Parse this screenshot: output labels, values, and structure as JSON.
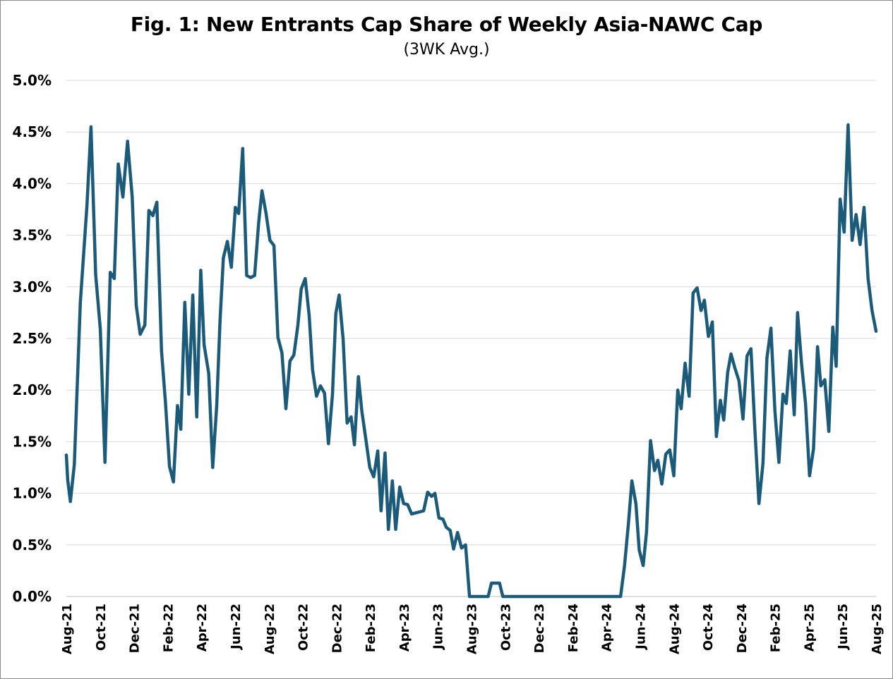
{
  "chart_data": {
    "type": "line",
    "title": "Fig. 1: New Entrants Cap Share of Weekly Asia-NAWC Cap",
    "subtitle": "(3WK Avg.)",
    "xlabel": "",
    "ylabel": "",
    "ylim": [
      0,
      5
    ],
    "y_ticks": [
      0,
      0.5,
      1,
      1.5,
      2,
      2.5,
      3,
      3.5,
      4,
      4.5,
      5
    ],
    "y_tick_labels": [
      "0.0%",
      "0.5%",
      "1.0%",
      "1.5%",
      "2.0%",
      "2.5%",
      "3.0%",
      "3.5%",
      "4.0%",
      "4.5%",
      "5.0%"
    ],
    "x_tick_labels": [
      "Aug-21",
      "Oct-21",
      "Dec-21",
      "Feb-22",
      "Apr-22",
      "Jun-22",
      "Aug-22",
      "Oct-22",
      "Dec-22",
      "Feb-23",
      "Apr-23",
      "Jun-23",
      "Aug-23",
      "Oct-23",
      "Dec-23",
      "Feb-24",
      "Apr-24",
      "Jun-24",
      "Aug-24",
      "Oct-24",
      "Dec-24",
      "Feb-25",
      "Apr-25",
      "Jun-25",
      "Aug-25"
    ],
    "grid": true,
    "line_color": "#1c5a7a",
    "series": [
      {
        "name": "New Entrants Cap Share (3WK Avg.)",
        "points": [
          [
            0.0,
            1.37
          ],
          [
            0.2,
            1.13
          ],
          [
            0.6,
            0.92
          ],
          [
            1.2,
            1.28
          ],
          [
            2.1,
            2.85
          ],
          [
            3.1,
            3.79
          ],
          [
            3.7,
            4.55
          ],
          [
            4.4,
            3.12
          ],
          [
            5.1,
            2.59
          ],
          [
            5.8,
            1.3
          ],
          [
            6.6,
            3.14
          ],
          [
            7.2,
            3.08
          ],
          [
            7.8,
            4.19
          ],
          [
            8.5,
            3.87
          ],
          [
            9.2,
            4.41
          ],
          [
            9.9,
            3.87
          ],
          [
            10.5,
            2.82
          ],
          [
            11.1,
            2.54
          ],
          [
            11.8,
            2.63
          ],
          [
            12.4,
            3.74
          ],
          [
            13.0,
            3.69
          ],
          [
            13.6,
            3.82
          ],
          [
            14.3,
            2.38
          ],
          [
            14.9,
            1.88
          ],
          [
            15.5,
            1.26
          ],
          [
            16.1,
            1.11
          ],
          [
            16.7,
            1.85
          ],
          [
            17.2,
            1.62
          ],
          [
            17.8,
            2.85
          ],
          [
            18.4,
            1.96
          ],
          [
            19.0,
            2.92
          ],
          [
            19.6,
            1.74
          ],
          [
            20.2,
            3.16
          ],
          [
            20.7,
            2.44
          ],
          [
            21.4,
            2.16
          ],
          [
            22.0,
            1.25
          ],
          [
            22.6,
            1.85
          ],
          [
            23.1,
            2.67
          ],
          [
            23.6,
            3.28
          ],
          [
            24.2,
            3.44
          ],
          [
            24.8,
            3.19
          ],
          [
            25.4,
            3.77
          ],
          [
            25.9,
            3.71
          ],
          [
            26.5,
            4.34
          ],
          [
            27.1,
            3.11
          ],
          [
            27.7,
            3.09
          ],
          [
            28.3,
            3.11
          ],
          [
            28.9,
            3.62
          ],
          [
            29.4,
            3.93
          ],
          [
            30.0,
            3.72
          ],
          [
            30.6,
            3.45
          ],
          [
            31.2,
            3.4
          ],
          [
            31.8,
            2.51
          ],
          [
            32.4,
            2.36
          ],
          [
            33.0,
            1.82
          ],
          [
            33.6,
            2.28
          ],
          [
            34.2,
            2.34
          ],
          [
            34.8,
            2.63
          ],
          [
            35.3,
            2.98
          ],
          [
            35.9,
            3.08
          ],
          [
            36.5,
            2.72
          ],
          [
            37.0,
            2.2
          ],
          [
            37.6,
            1.94
          ],
          [
            38.2,
            2.04
          ],
          [
            38.8,
            1.97
          ],
          [
            39.4,
            1.48
          ],
          [
            40.0,
            1.96
          ],
          [
            40.5,
            2.74
          ],
          [
            41.0,
            2.92
          ],
          [
            41.6,
            2.49
          ],
          [
            42.2,
            1.68
          ],
          [
            42.8,
            1.74
          ],
          [
            43.3,
            1.47
          ],
          [
            43.9,
            2.13
          ],
          [
            44.4,
            1.8
          ],
          [
            45.0,
            1.53
          ],
          [
            45.6,
            1.25
          ],
          [
            46.2,
            1.16
          ],
          [
            46.8,
            1.41
          ],
          [
            47.3,
            0.83
          ],
          [
            47.9,
            1.39
          ],
          [
            48.4,
            0.65
          ],
          [
            49.0,
            1.12
          ],
          [
            49.5,
            0.65
          ],
          [
            50.1,
            1.06
          ],
          [
            50.7,
            0.9
          ],
          [
            51.3,
            0.89
          ],
          [
            51.9,
            0.8
          ],
          [
            52.5,
            0.81
          ],
          [
            53.1,
            0.82
          ],
          [
            53.7,
            0.83
          ],
          [
            54.3,
            1.01
          ],
          [
            54.9,
            0.97
          ],
          [
            55.4,
            1.0
          ],
          [
            56.0,
            0.76
          ],
          [
            56.6,
            0.75
          ],
          [
            57.1,
            0.67
          ],
          [
            57.7,
            0.64
          ],
          [
            58.2,
            0.46
          ],
          [
            58.8,
            0.62
          ],
          [
            59.4,
            0.47
          ],
          [
            60.0,
            0.5
          ],
          [
            60.6,
            0.0
          ],
          [
            61.7,
            0.0
          ],
          [
            62.8,
            0.0
          ],
          [
            63.4,
            0.0
          ],
          [
            63.9,
            0.13
          ],
          [
            64.5,
            0.13
          ],
          [
            65.1,
            0.13
          ],
          [
            65.6,
            0.0
          ],
          [
            70.0,
            0.0
          ],
          [
            75.0,
            0.0
          ],
          [
            80.0,
            0.0
          ],
          [
            83.3,
            0.0
          ],
          [
            83.9,
            0.3
          ],
          [
            84.5,
            0.72
          ],
          [
            85.0,
            1.12
          ],
          [
            85.6,
            0.9
          ],
          [
            86.1,
            0.45
          ],
          [
            86.7,
            0.3
          ],
          [
            87.2,
            0.62
          ],
          [
            87.8,
            1.51
          ],
          [
            88.4,
            1.22
          ],
          [
            88.9,
            1.32
          ],
          [
            89.5,
            1.09
          ],
          [
            90.1,
            1.38
          ],
          [
            90.7,
            1.42
          ],
          [
            91.3,
            1.17
          ],
          [
            91.9,
            2.0
          ],
          [
            92.4,
            1.82
          ],
          [
            93.0,
            2.26
          ],
          [
            93.6,
            1.94
          ],
          [
            94.2,
            2.94
          ],
          [
            94.8,
            2.99
          ],
          [
            95.4,
            2.77
          ],
          [
            95.9,
            2.87
          ],
          [
            96.5,
            2.52
          ],
          [
            97.1,
            2.66
          ],
          [
            97.7,
            1.55
          ],
          [
            98.3,
            1.9
          ],
          [
            98.8,
            1.71
          ],
          [
            99.4,
            2.17
          ],
          [
            99.9,
            2.35
          ],
          [
            100.5,
            2.21
          ],
          [
            101.1,
            2.09
          ],
          [
            101.7,
            1.72
          ],
          [
            102.3,
            2.33
          ],
          [
            102.9,
            2.4
          ],
          [
            103.5,
            1.6
          ],
          [
            104.1,
            0.9
          ],
          [
            104.7,
            1.29
          ],
          [
            105.3,
            2.31
          ],
          [
            105.9,
            2.6
          ],
          [
            106.5,
            1.8
          ],
          [
            107.1,
            1.3
          ],
          [
            107.7,
            1.96
          ],
          [
            108.2,
            1.87
          ],
          [
            108.8,
            2.38
          ],
          [
            109.4,
            1.76
          ],
          [
            109.9,
            2.75
          ],
          [
            110.5,
            2.26
          ],
          [
            111.1,
            1.87
          ],
          [
            111.7,
            1.17
          ],
          [
            112.3,
            1.43
          ],
          [
            112.9,
            2.42
          ],
          [
            113.4,
            2.04
          ],
          [
            114.0,
            2.1
          ],
          [
            114.6,
            1.6
          ],
          [
            115.2,
            2.61
          ],
          [
            115.7,
            2.23
          ],
          [
            116.3,
            3.85
          ],
          [
            116.9,
            3.53
          ],
          [
            117.5,
            4.57
          ],
          [
            118.1,
            3.45
          ],
          [
            118.7,
            3.7
          ],
          [
            119.3,
            3.41
          ],
          [
            119.9,
            3.77
          ],
          [
            120.5,
            3.08
          ],
          [
            121.1,
            2.77
          ],
          [
            121.7,
            2.57
          ]
        ]
      }
    ]
  }
}
